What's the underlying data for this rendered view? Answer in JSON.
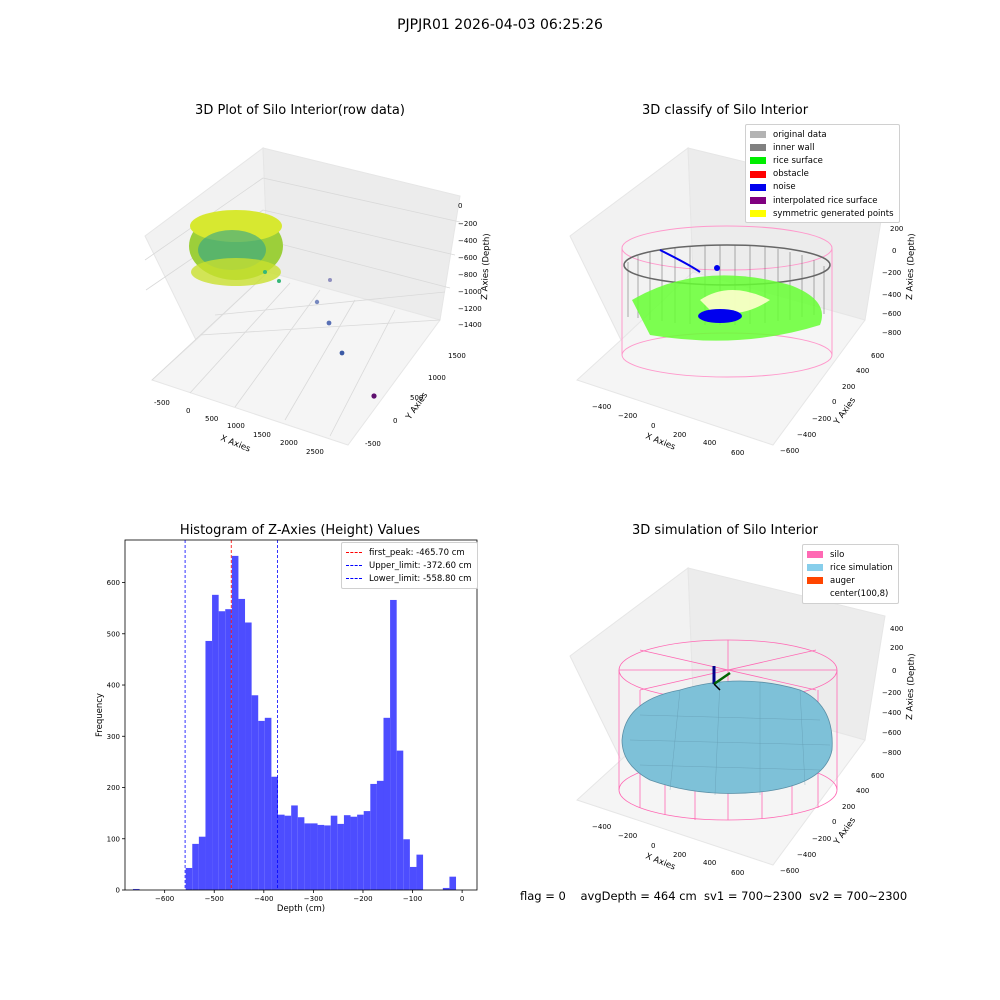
{
  "suptitle": "PJPJR01 2026-04-03 06:25:26",
  "footer": "flag = 0    avgDepth = 464 cm  sv1 = 700~2300  sv2 = 700~2300",
  "panels": {
    "raw": {
      "title": "3D Plot of Silo Interior(row data)",
      "xlabel": "X Axies",
      "ylabel": "Y Axies",
      "zlabel": "Z Axies (Depth)",
      "xticks": [
        "-500",
        "0",
        "500",
        "1000",
        "1500",
        "2000",
        "2500"
      ],
      "yticks": [
        "-500",
        "0",
        "500",
        "1000",
        "1500"
      ],
      "zticks": [
        "0",
        "−200",
        "−400",
        "−600",
        "−800",
        "−1000",
        "−1200",
        "−1400"
      ]
    },
    "classify": {
      "title": "3D classify of Silo Interior",
      "xlabel": "X Axies",
      "ylabel": "Y Axies",
      "zlabel": "Z Axies (Depth)",
      "xticks": [
        "−400",
        "−200",
        "0",
        "200",
        "400",
        "600"
      ],
      "yticks": [
        "−600",
        "−400",
        "−200",
        "0",
        "200",
        "400",
        "600"
      ],
      "zticks": [
        "200",
        "0",
        "−200",
        "−400",
        "−600",
        "−800"
      ],
      "legend": [
        {
          "label": "original data",
          "color": "#b3b3b3"
        },
        {
          "label": "inner wall",
          "color": "#808080"
        },
        {
          "label": "rice surface",
          "color": "#00ee00"
        },
        {
          "label": "obstacle",
          "color": "#ff0000"
        },
        {
          "label": "noise",
          "color": "#0000ee"
        },
        {
          "label": "interpolated rice surface",
          "color": "#800080"
        },
        {
          "label": "symmetric generated points",
          "color": "#ffff00"
        }
      ]
    },
    "sim": {
      "title": "3D simulation of Silo Interior",
      "xlabel": "X Axies",
      "ylabel": "Y Axies",
      "zlabel": "Z Axies (Depth)",
      "xticks": [
        "−400",
        "−200",
        "0",
        "200",
        "400",
        "600"
      ],
      "yticks": [
        "−600",
        "−400",
        "−200",
        "0",
        "200",
        "400",
        "600"
      ],
      "zticks": [
        "400",
        "200",
        "0",
        "−200",
        "−400",
        "−600",
        "−800"
      ],
      "legend": [
        {
          "label": "silo",
          "color": "#ff69b4"
        },
        {
          "label": "rice simulation",
          "color": "#87ceeb"
        },
        {
          "label": "auger",
          "color": "#ff4500"
        },
        {
          "label": "center(100,8)",
          "color": "#ffffff"
        }
      ]
    }
  },
  "colors": {
    "histogram_bar": "#4d4dff",
    "first_peak_line": "#ff0000",
    "limit_lines": "#0000ff",
    "pane": "#f2f2f2",
    "grid": "#d9d9d9"
  },
  "chart_data": [
    {
      "type": "bar",
      "title": "Histogram of Z-Axies (Height) Values",
      "xlabel": "Depth (cm)",
      "ylabel": "Frequency",
      "xlim": [
        -680,
        30
      ],
      "ylim": [
        0,
        683
      ],
      "xticks": [
        -600,
        -500,
        -400,
        -300,
        -200,
        -100,
        0
      ],
      "xtick_labels": [
        "−600",
        "−500",
        "−400",
        "−300",
        "−200",
        "−100",
        "0"
      ],
      "yticks": [
        0,
        100,
        200,
        300,
        400,
        500,
        600
      ],
      "bin_width": 13.3,
      "bins": [
        {
          "x": -664,
          "v": 2
        },
        {
          "x": -557.6,
          "v": 43
        },
        {
          "x": -544.3,
          "v": 90
        },
        {
          "x": -531.0,
          "v": 104
        },
        {
          "x": -517.7,
          "v": 486
        },
        {
          "x": -504.4,
          "v": 576
        },
        {
          "x": -491.1,
          "v": 544
        },
        {
          "x": -477.8,
          "v": 548
        },
        {
          "x": -464.5,
          "v": 652
        },
        {
          "x": -451.2,
          "v": 568
        },
        {
          "x": -437.9,
          "v": 522
        },
        {
          "x": -424.6,
          "v": 380
        },
        {
          "x": -411.3,
          "v": 330
        },
        {
          "x": -398.0,
          "v": 336
        },
        {
          "x": -384.7,
          "v": 221
        },
        {
          "x": -371.4,
          "v": 147
        },
        {
          "x": -358.1,
          "v": 145
        },
        {
          "x": -344.8,
          "v": 165
        },
        {
          "x": -331.5,
          "v": 142
        },
        {
          "x": -318.2,
          "v": 130
        },
        {
          "x": -304.9,
          "v": 130
        },
        {
          "x": -291.6,
          "v": 127
        },
        {
          "x": -278.3,
          "v": 126
        },
        {
          "x": -265.0,
          "v": 145
        },
        {
          "x": -251.7,
          "v": 129
        },
        {
          "x": -238.4,
          "v": 146
        },
        {
          "x": -225.1,
          "v": 143
        },
        {
          "x": -211.8,
          "v": 147
        },
        {
          "x": -198.5,
          "v": 154
        },
        {
          "x": -185.2,
          "v": 207
        },
        {
          "x": -171.9,
          "v": 213
        },
        {
          "x": -158.6,
          "v": 336
        },
        {
          "x": -145.3,
          "v": 566
        },
        {
          "x": -132.0,
          "v": 272
        },
        {
          "x": -118.7,
          "v": 99
        },
        {
          "x": -105.4,
          "v": 45
        },
        {
          "x": -92.1,
          "v": 69
        },
        {
          "x": -78.8,
          "v": 0
        },
        {
          "x": -65.5,
          "v": 0
        },
        {
          "x": -52.2,
          "v": 0
        },
        {
          "x": -38.9,
          "v": 4
        },
        {
          "x": -25.6,
          "v": 26
        }
      ],
      "vlines": [
        {
          "label": "first_peak: -465.70 cm",
          "x": -465.7,
          "color": "#ff0000"
        },
        {
          "label": "Upper_limit: -372.60 cm",
          "x": -372.6,
          "color": "#0000ff"
        },
        {
          "label": "Lower_limit: -558.80 cm",
          "x": -558.8,
          "color": "#0000ff"
        }
      ]
    }
  ]
}
